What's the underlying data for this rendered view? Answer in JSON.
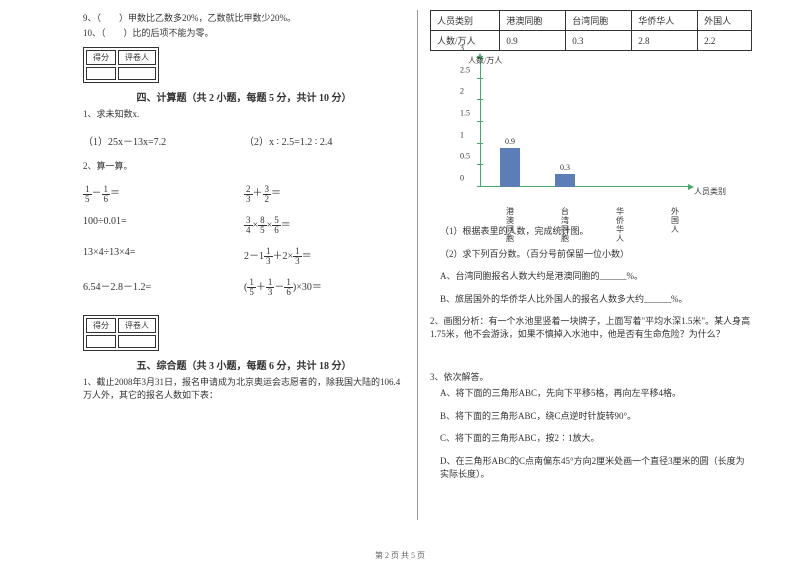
{
  "left": {
    "q9": "9、（　　）甲数比乙数多20%，乙数就比甲数少20%。",
    "q10": "10、（　　）比的后项不能为零。",
    "scoreBox": {
      "c1": "得分",
      "c2": "评卷人"
    },
    "section4": "四、计算题（共 2 小题，每题 5 分，共计 10 分）",
    "s4q1": "1、求未知数x.",
    "s4q1a": "（1）25x－13x=7.2",
    "s4q1b": "（2）x ∶ 2.5=1.2 ∶ 2.4",
    "s4q2": "2、算一算。",
    "m1a": {
      "a_n": "1",
      "a_d": "5",
      "op": "－",
      "b_n": "1",
      "b_d": "6",
      "eq": "＝"
    },
    "m1b": {
      "a_n": "2",
      "a_d": "3",
      "op": "＋",
      "b_n": "3",
      "b_d": "2",
      "eq": "＝"
    },
    "m2a": "100÷0.01=",
    "m2b": {
      "a_n": "3",
      "a_d": "4",
      "op1": "×",
      "b_n": "8",
      "b_d": "5",
      "op2": "×",
      "c_n": "5",
      "c_d": "6",
      "eq": "＝"
    },
    "m3a": "13×4÷13×4=",
    "m3b": {
      "pre": "2－1",
      "a_n": "1",
      "a_d": "3",
      "op": "＋2×",
      "b_n": "1",
      "b_d": "3",
      "eq": "＝"
    },
    "m4a": "6.54－2.8－1.2=",
    "m4b": {
      "lp": "(",
      "a_n": "1",
      "a_d": "5",
      "op1": "＋",
      "b_n": "1",
      "b_d": "3",
      "op2": "－",
      "c_n": "1",
      "c_d": "6",
      "rp": ")",
      "tail": "×30＝"
    },
    "section5": "五、综合题（共 3 小题，每题 6 分，共计 18 分）",
    "s5q1": "1、截止2008年3月31日，报名申请成为北京奥运会志愿者的，除我国大陆的106.4万人外，其它的报名人数如下表：",
    "scoreBox2": {
      "c1": "得分",
      "c2": "评卷人"
    }
  },
  "right": {
    "table": {
      "r1": [
        "人员类别",
        "港澳同胞",
        "台湾同胞",
        "华侨华人",
        "外国人"
      ],
      "r2": [
        "人数/万人",
        "0.9",
        "0.3",
        "2.8",
        "2.2"
      ]
    },
    "chart": {
      "yTitle": "人数/万人",
      "xTitle": "人员类别",
      "yTicks": [
        "0",
        "0.5",
        "1",
        "1.5",
        "2",
        "2.5",
        "3"
      ],
      "yMax": 3,
      "categories": [
        "港澳同胞",
        "台湾同胞",
        "华侨华人",
        "外国人"
      ],
      "values": [
        0.9,
        0.3,
        null,
        null
      ],
      "barColor": "#5b7db8",
      "axisColor": "#4aa64a"
    },
    "q1_1": "（1）根据表里的人数，完成统计图。",
    "q1_2": "（2）求下列百分数。（百分号前保留一位小数）",
    "q1_2a": "A、台湾同胞报名人数大约是港澳同胞的______%。",
    "q1_2b": "B、旅居国外的华侨华人比外国人的报名人数多大约______%。",
    "q2": "2、画图分析：有一个水池里竖着一块牌子，上面写着\"平均水深1.5米\"。某人身高1.75米，他不会游泳，如果不慎掉入水池中，他是否有生命危险？为什么？",
    "q3": "3、依次解答。",
    "q3a": "A、将下面的三角形ABC，先向下平移5格，再向左平移4格。",
    "q3b": "B、将下面的三角形ABC，绕C点逆时针旋转90°。",
    "q3c": "C、将下面的三角形ABC，按2∶1放大。",
    "q3d": "D、在三角形ABC的C点南偏东45°方向2厘米处画一个直径3厘米的圆（长度为实际长度）。"
  },
  "footer": "第 2 页 共 5 页"
}
